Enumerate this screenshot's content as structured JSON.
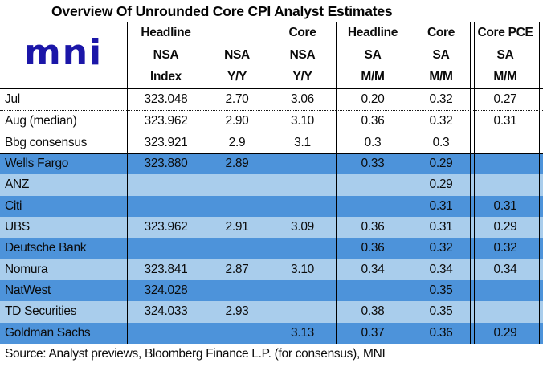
{
  "title": "Overview Of Unrounded Core CPI Analyst Estimates",
  "logo_text": "mni",
  "colors": {
    "logo_navy": "#1B16A8",
    "row_dark": "#4D93DA",
    "row_light": "#A9CDEC",
    "border": "#000000"
  },
  "header_columns": [
    {
      "line1": "Headline",
      "line2": "NSA",
      "line3": "Index"
    },
    {
      "line1": "",
      "line2": "NSA",
      "line3": "Y/Y"
    },
    {
      "line1": "Core",
      "line2": "NSA",
      "line3": "Y/Y"
    },
    {
      "line1": "Headline",
      "line2": "SA",
      "line3": "M/M"
    },
    {
      "line1": "Core",
      "line2": "SA",
      "line3": "M/M"
    },
    {
      "line1": "Core PCE",
      "line2": "SA",
      "line3": "M/M"
    }
  ],
  "rows": [
    {
      "label": "Jul",
      "bg": "white",
      "values": [
        "323.048",
        "2.70",
        "3.06",
        "0.20",
        "0.32",
        "0.27"
      ]
    },
    {
      "label": "Aug (median)",
      "bg": "white",
      "values": [
        "323.962",
        "2.90",
        "3.10",
        "0.36",
        "0.32",
        "0.31"
      ]
    },
    {
      "label": "Bbg consensus",
      "bg": "white",
      "values": [
        "323.921",
        "2.9",
        "3.1",
        "0.3",
        "0.3",
        ""
      ]
    },
    {
      "label": "Wells Fargo",
      "bg": "dark",
      "values": [
        "323.880",
        "2.89",
        "",
        "0.33",
        "0.29",
        ""
      ]
    },
    {
      "label": "ANZ",
      "bg": "light",
      "values": [
        "",
        "",
        "",
        "",
        "0.29",
        ""
      ]
    },
    {
      "label": "Citi",
      "bg": "dark",
      "values": [
        "",
        "",
        "",
        "",
        "0.31",
        "0.31"
      ]
    },
    {
      "label": "UBS",
      "bg": "light",
      "values": [
        "323.962",
        "2.91",
        "3.09",
        "0.36",
        "0.31",
        "0.29"
      ]
    },
    {
      "label": "Deutsche Bank",
      "bg": "dark",
      "values": [
        "",
        "",
        "",
        "0.36",
        "0.32",
        "0.32"
      ]
    },
    {
      "label": "Nomura",
      "bg": "light",
      "values": [
        "323.841",
        "2.87",
        "3.10",
        "0.34",
        "0.34",
        "0.34"
      ]
    },
    {
      "label": "NatWest",
      "bg": "dark",
      "values": [
        "324.028",
        "",
        "",
        "",
        "0.35",
        ""
      ]
    },
    {
      "label": "TD Securities",
      "bg": "light",
      "values": [
        "324.033",
        "2.93",
        "",
        "0.38",
        "0.35",
        ""
      ]
    },
    {
      "label": "Goldman Sachs",
      "bg": "dark",
      "values": [
        "",
        "",
        "3.13",
        "0.37",
        "0.36",
        "0.29"
      ]
    }
  ],
  "source": "Source: Analyst previews, Bloomberg Finance L.P. (for consensus), MNI",
  "chart_data": {
    "type": "table",
    "title": "Overview Of Unrounded Core CPI Analyst Estimates",
    "columns": [
      "",
      "Headline NSA Index",
      "NSA Y/Y",
      "Core NSA Y/Y",
      "Headline SA M/M",
      "Core SA M/M",
      "Core PCE SA M/M"
    ],
    "rows": [
      [
        "Jul",
        "323.048",
        "2.70",
        "3.06",
        "0.20",
        "0.32",
        "0.27"
      ],
      [
        "Aug (median)",
        "323.962",
        "2.90",
        "3.10",
        "0.36",
        "0.32",
        "0.31"
      ],
      [
        "Bbg consensus",
        "323.921",
        "2.9",
        "3.1",
        "0.3",
        "0.3",
        ""
      ],
      [
        "Wells Fargo",
        "323.880",
        "2.89",
        "",
        "0.33",
        "0.29",
        ""
      ],
      [
        "ANZ",
        "",
        "",
        "",
        "",
        "0.29",
        ""
      ],
      [
        "Citi",
        "",
        "",
        "",
        "",
        "0.31",
        "0.31"
      ],
      [
        "UBS",
        "323.962",
        "2.91",
        "3.09",
        "0.36",
        "0.31",
        "0.29"
      ],
      [
        "Deutsche Bank",
        "",
        "",
        "",
        "0.36",
        "0.32",
        "0.32"
      ],
      [
        "Nomura",
        "323.841",
        "2.87",
        "3.10",
        "0.34",
        "0.34",
        "0.34"
      ],
      [
        "NatWest",
        "324.028",
        "",
        "",
        "",
        "0.35",
        ""
      ],
      [
        "TD Securities",
        "324.033",
        "2.93",
        "",
        "0.38",
        "0.35",
        ""
      ],
      [
        "Goldman Sachs",
        "",
        "",
        "3.13",
        "0.37",
        "0.36",
        "0.29"
      ]
    ],
    "source": "Source: Analyst previews, Bloomberg Finance L.P. (for consensus), MNI",
    "layout": {
      "highlight_row_colors": [
        "#4D93DA",
        "#A9CDEC"
      ],
      "plain_rows": [
        "Jul",
        "Aug (median)",
        "Bbg consensus"
      ]
    }
  }
}
